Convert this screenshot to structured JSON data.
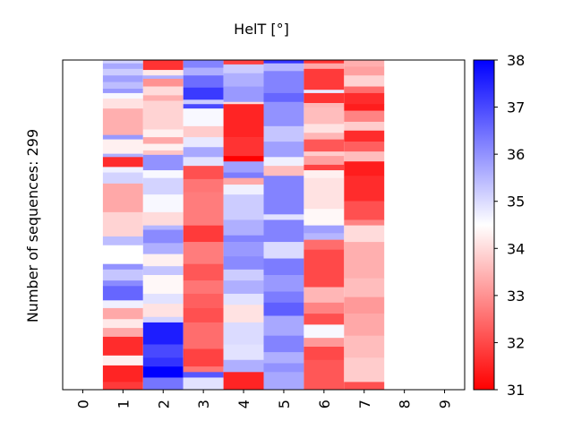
{
  "chart_data": {
    "type": "heatmap",
    "title": "HelT [°]",
    "ylabel": "Number of sequences: 299",
    "xlabel": "",
    "x_ticks": [
      "0",
      "1",
      "2",
      "3",
      "4",
      "5",
      "6",
      "7",
      "8",
      "9"
    ],
    "n_rows": 299,
    "n_cols": 10,
    "colormap": {
      "low": "#ff0000",
      "mid": "#ffffff",
      "high": "#0000ff"
    },
    "colorbar": {
      "min": 31,
      "max": 38,
      "ticks": [
        "31",
        "32",
        "33",
        "34",
        "35",
        "36",
        "37",
        "38"
      ]
    },
    "columns": [
      {
        "index": 0,
        "segments": []
      },
      {
        "index": 1,
        "segments": [
          [
            0,
            3,
            35.1
          ],
          [
            3,
            8,
            35.7
          ],
          [
            8,
            14,
            35.2
          ],
          [
            14,
            20,
            35.8
          ],
          [
            20,
            26,
            35.4
          ],
          [
            26,
            30,
            35.9
          ],
          [
            30,
            35,
            34.6
          ],
          [
            35,
            44,
            34.1
          ],
          [
            44,
            68,
            33.4
          ],
          [
            68,
            72,
            35.9
          ],
          [
            72,
            85,
            34.3
          ],
          [
            85,
            88,
            35.6
          ],
          [
            88,
            97,
            31.6
          ],
          [
            97,
            102,
            34.7
          ],
          [
            102,
            112,
            35.1
          ],
          [
            112,
            138,
            33.3
          ],
          [
            138,
            160,
            33.9
          ],
          [
            160,
            168,
            35.4
          ],
          [
            168,
            185,
            34.5
          ],
          [
            185,
            190,
            36.0
          ],
          [
            190,
            200,
            35.3
          ],
          [
            200,
            205,
            36.1
          ],
          [
            205,
            218,
            36.6
          ],
          [
            218,
            225,
            34.7
          ],
          [
            225,
            235,
            33.3
          ],
          [
            235,
            243,
            34.2
          ],
          [
            243,
            251,
            33.3
          ],
          [
            251,
            268,
            31.6
          ],
          [
            268,
            277,
            34.3
          ],
          [
            277,
            292,
            31.5
          ],
          [
            292,
            299,
            31.8
          ]
        ]
      },
      {
        "index": 2,
        "segments": [
          [
            0,
            9,
            31.7
          ],
          [
            9,
            14,
            34.2
          ],
          [
            14,
            17,
            35.6
          ],
          [
            17,
            24,
            33.0
          ],
          [
            24,
            32,
            34.0
          ],
          [
            32,
            37,
            33.4
          ],
          [
            37,
            63,
            33.9
          ],
          [
            63,
            70,
            34.3
          ],
          [
            70,
            76,
            33.3
          ],
          [
            76,
            82,
            34.3
          ],
          [
            82,
            86,
            33.7
          ],
          [
            86,
            100,
            36.0
          ],
          [
            100,
            107,
            34.6
          ],
          [
            107,
            122,
            35.1
          ],
          [
            122,
            138,
            34.6
          ],
          [
            138,
            150,
            34.0
          ],
          [
            150,
            154,
            35.5
          ],
          [
            154,
            166,
            36.1
          ],
          [
            166,
            176,
            35.6
          ],
          [
            176,
            187,
            34.3
          ],
          [
            187,
            195,
            35.3
          ],
          [
            195,
            212,
            34.4
          ],
          [
            212,
            221,
            34.9
          ],
          [
            221,
            233,
            34.1
          ],
          [
            233,
            238,
            35.1
          ],
          [
            238,
            258,
            37.6
          ],
          [
            258,
            270,
            37.0
          ],
          [
            270,
            278,
            37.3
          ],
          [
            278,
            288,
            38.0
          ],
          [
            288,
            299,
            36.4
          ]
        ]
      },
      {
        "index": 3,
        "segments": [
          [
            0,
            7,
            36.2
          ],
          [
            7,
            14,
            35.6
          ],
          [
            14,
            25,
            36.5
          ],
          [
            25,
            36,
            37.2
          ],
          [
            36,
            40,
            35.2
          ],
          [
            40,
            44,
            37.0
          ],
          [
            44,
            60,
            34.6
          ],
          [
            60,
            70,
            33.8
          ],
          [
            70,
            79,
            34.8
          ],
          [
            79,
            88,
            35.7
          ],
          [
            88,
            96,
            34.9
          ],
          [
            96,
            108,
            32.1
          ],
          [
            108,
            120,
            32.6
          ],
          [
            120,
            150,
            32.7
          ],
          [
            150,
            165,
            31.8
          ],
          [
            165,
            185,
            32.7
          ],
          [
            185,
            200,
            32.2
          ],
          [
            200,
            212,
            32.6
          ],
          [
            212,
            225,
            32.3
          ],
          [
            225,
            238,
            32.1
          ],
          [
            238,
            262,
            32.5
          ],
          [
            262,
            278,
            31.9
          ],
          [
            278,
            283,
            32.6
          ],
          [
            283,
            288,
            36.8
          ],
          [
            288,
            299,
            34.9
          ]
        ]
      },
      {
        "index": 4,
        "segments": [
          [
            0,
            4,
            31.9
          ],
          [
            4,
            12,
            35.2
          ],
          [
            12,
            24,
            35.6
          ],
          [
            24,
            38,
            35.9
          ],
          [
            38,
            40,
            34.0
          ],
          [
            40,
            70,
            31.5
          ],
          [
            70,
            87,
            31.7
          ],
          [
            87,
            92,
            31.0
          ],
          [
            92,
            102,
            35.8
          ],
          [
            102,
            107,
            36.3
          ],
          [
            107,
            113,
            33.3
          ],
          [
            113,
            122,
            34.7
          ],
          [
            122,
            145,
            35.2
          ],
          [
            145,
            159,
            35.6
          ],
          [
            159,
            165,
            36.2
          ],
          [
            165,
            178,
            35.9
          ],
          [
            178,
            190,
            36.1
          ],
          [
            190,
            200,
            35.2
          ],
          [
            200,
            212,
            35.6
          ],
          [
            212,
            222,
            34.9
          ],
          [
            222,
            238,
            34.1
          ],
          [
            238,
            258,
            35.0
          ],
          [
            258,
            272,
            34.9
          ],
          [
            272,
            283,
            35.6
          ],
          [
            283,
            299,
            31.5
          ]
        ]
      },
      {
        "index": 5,
        "segments": [
          [
            0,
            3,
            37.3
          ],
          [
            3,
            10,
            35.5
          ],
          [
            10,
            30,
            36.2
          ],
          [
            30,
            38,
            36.6
          ],
          [
            38,
            60,
            36.0
          ],
          [
            60,
            74,
            35.3
          ],
          [
            74,
            88,
            35.8
          ],
          [
            88,
            96,
            34.7
          ],
          [
            96,
            105,
            33.6
          ],
          [
            105,
            140,
            36.2
          ],
          [
            140,
            145,
            34.9
          ],
          [
            145,
            165,
            36.2
          ],
          [
            165,
            180,
            35.0
          ],
          [
            180,
            195,
            36.3
          ],
          [
            195,
            210,
            35.9
          ],
          [
            210,
            220,
            36.3
          ],
          [
            220,
            232,
            36.7
          ],
          [
            232,
            250,
            35.7
          ],
          [
            250,
            265,
            36.2
          ],
          [
            265,
            275,
            35.6
          ],
          [
            275,
            283,
            36.0
          ],
          [
            283,
            299,
            35.7
          ]
        ]
      },
      {
        "index": 6,
        "segments": [
          [
            0,
            3,
            31.7
          ],
          [
            3,
            8,
            33.3
          ],
          [
            8,
            27,
            31.8
          ],
          [
            27,
            30,
            34.8
          ],
          [
            30,
            39,
            31.7
          ],
          [
            39,
            43,
            33.5
          ],
          [
            43,
            58,
            33.6
          ],
          [
            58,
            66,
            34.1
          ],
          [
            66,
            72,
            33.5
          ],
          [
            72,
            83,
            32.2
          ],
          [
            83,
            87,
            33.8
          ],
          [
            87,
            95,
            33.2
          ],
          [
            95,
            100,
            31.9
          ],
          [
            100,
            107,
            34.3
          ],
          [
            107,
            135,
            34.1
          ],
          [
            135,
            150,
            34.4
          ],
          [
            150,
            157,
            35.8
          ],
          [
            157,
            163,
            35.5
          ],
          [
            163,
            172,
            32.5
          ],
          [
            172,
            206,
            32.0
          ],
          [
            206,
            220,
            33.5
          ],
          [
            220,
            230,
            32.8
          ],
          [
            230,
            240,
            32.1
          ],
          [
            240,
            252,
            34.6
          ],
          [
            252,
            260,
            33.1
          ],
          [
            260,
            272,
            32.0
          ],
          [
            272,
            299,
            32.2
          ]
        ]
      },
      {
        "index": 7,
        "segments": [
          [
            0,
            6,
            33.4
          ],
          [
            6,
            14,
            33.2
          ],
          [
            14,
            24,
            33.9
          ],
          [
            24,
            30,
            32.5
          ],
          [
            30,
            40,
            31.6
          ],
          [
            40,
            46,
            31.4
          ],
          [
            46,
            56,
            32.8
          ],
          [
            56,
            64,
            33.8
          ],
          [
            64,
            74,
            31.6
          ],
          [
            74,
            83,
            32.3
          ],
          [
            83,
            92,
            33.6
          ],
          [
            92,
            105,
            31.4
          ],
          [
            105,
            128,
            31.6
          ],
          [
            128,
            145,
            32.1
          ],
          [
            145,
            150,
            32.8
          ],
          [
            150,
            165,
            34.0
          ],
          [
            165,
            198,
            33.4
          ],
          [
            198,
            215,
            33.6
          ],
          [
            215,
            230,
            33.1
          ],
          [
            230,
            250,
            33.3
          ],
          [
            250,
            270,
            33.6
          ],
          [
            270,
            292,
            33.8
          ],
          [
            292,
            299,
            32.1
          ]
        ]
      },
      {
        "index": 8,
        "segments": []
      },
      {
        "index": 9,
        "segments": []
      }
    ]
  }
}
